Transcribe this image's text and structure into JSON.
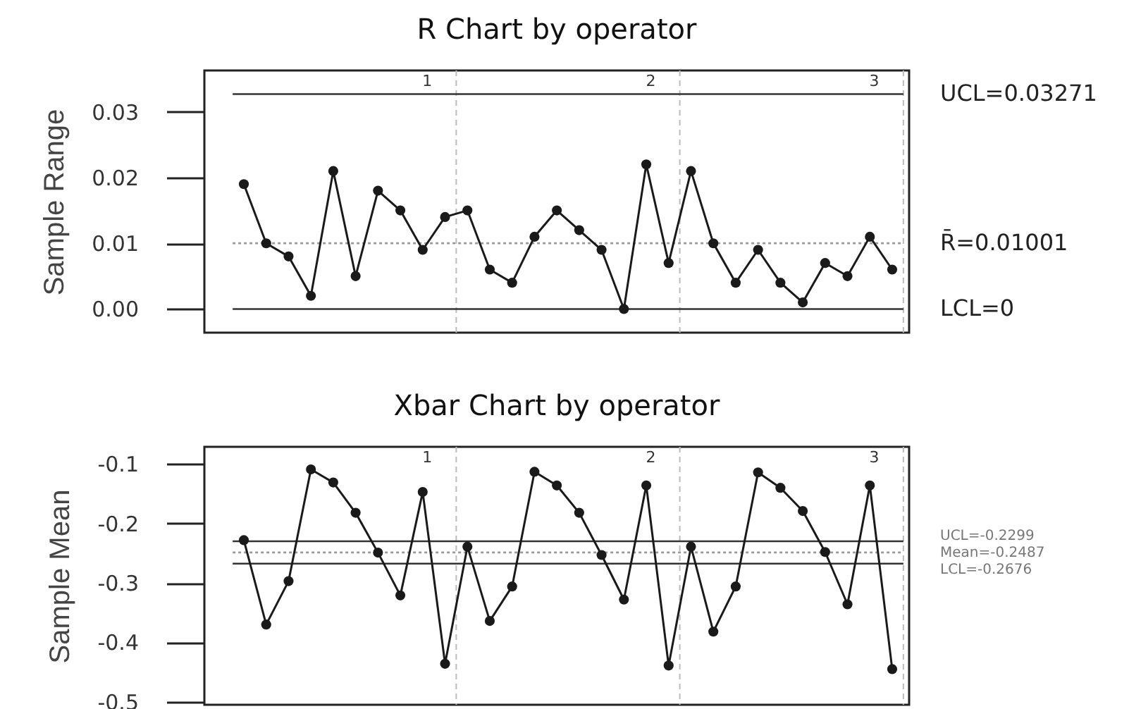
{
  "chart_data": [
    {
      "type": "line",
      "title": "R Chart by operator",
      "ylabel": "Sample Range",
      "categories": [
        null,
        null,
        null,
        null,
        null,
        null,
        null,
        null,
        null,
        null,
        null,
        null,
        null,
        null,
        null,
        null,
        null,
        null,
        null,
        null,
        null,
        null,
        null,
        null,
        null,
        null,
        null,
        null,
        null,
        null
      ],
      "series": [
        {
          "color": "#1a1a1a",
          "values": [
            0.019,
            0.01,
            0.008,
            0.002,
            0.021,
            0.005,
            0.018,
            0.015,
            0.009,
            0.014,
            0.015,
            0.006,
            0.004,
            0.011,
            0.015,
            0.012,
            0.009,
            0,
            0.022,
            0.007,
            0.021,
            0.01,
            0.004,
            0.009,
            0.004,
            0.001,
            0.007,
            0.005,
            0.011,
            0.006
          ]
        }
      ],
      "marker": "circle",
      "line_style": "solid",
      "grid": false,
      "tick_labels": "y",
      "ylim": [
        -0.0036,
        0.0363
      ],
      "yticks": [
        {
          "value": 0,
          "label": "0.00"
        },
        0.01,
        0.02,
        0.03
      ],
      "ref_lines": [
        {
          "axis": "y",
          "value": 0.03271,
          "label": "UCL=0.03271",
          "color": "#333333",
          "line_style": "solid"
        },
        {
          "axis": "y",
          "value": 0.01001,
          "label": "R̄=0.01001",
          "color": "#999999",
          "line_style": "dotted"
        },
        {
          "axis": "y",
          "value": 0,
          "label": "LCL=0",
          "color": "#333333",
          "line_style": "solid"
        }
      ],
      "annotations": [
        "1",
        "2",
        "3"
      ]
    },
    {
      "type": "line",
      "title": "Xbar Chart by operator",
      "ylabel": "Sample Mean",
      "categories": [
        null,
        null,
        null,
        null,
        null,
        null,
        null,
        null,
        null,
        null,
        null,
        null,
        null,
        null,
        null,
        null,
        null,
        null,
        null,
        null,
        null,
        null,
        null,
        null,
        null,
        null,
        null,
        null,
        null,
        null
      ],
      "series": [
        {
          "color": "#1a1a1a",
          "values": [
            -0.228,
            -0.37,
            -0.297,
            -0.109,
            -0.131,
            -0.182,
            -0.249,
            -0.321,
            -0.147,
            -0.436,
            -0.239,
            -0.364,
            -0.306,
            -0.113,
            -0.136,
            -0.182,
            -0.253,
            -0.328,
            -0.136,
            -0.439,
            -0.239,
            -0.382,
            -0.306,
            -0.114,
            -0.14,
            -0.179,
            -0.248,
            -0.336,
            -0.136,
            -0.445
          ]
        }
      ],
      "marker": "circle",
      "line_style": "solid",
      "grid": false,
      "tick_labels": "y",
      "ylim": [
        -0.505,
        -0.071
      ],
      "yticks": [
        -0.5,
        -0.4,
        -0.3,
        -0.2,
        -0.1
      ],
      "ref_lines": [
        {
          "axis": "y",
          "value": -0.2299,
          "label": "UCL=-0.2299",
          "color": "#333333",
          "line_style": "solid"
        },
        {
          "axis": "y",
          "value": -0.2487,
          "label": "Mean=-0.2487",
          "color": "#999999",
          "line_style": "dotted"
        },
        {
          "axis": "y",
          "value": -0.2676,
          "label": "LCL=-0.2676",
          "color": "#333333",
          "line_style": "solid"
        }
      ],
      "annotations": [
        "1",
        "2",
        "3"
      ]
    }
  ]
}
